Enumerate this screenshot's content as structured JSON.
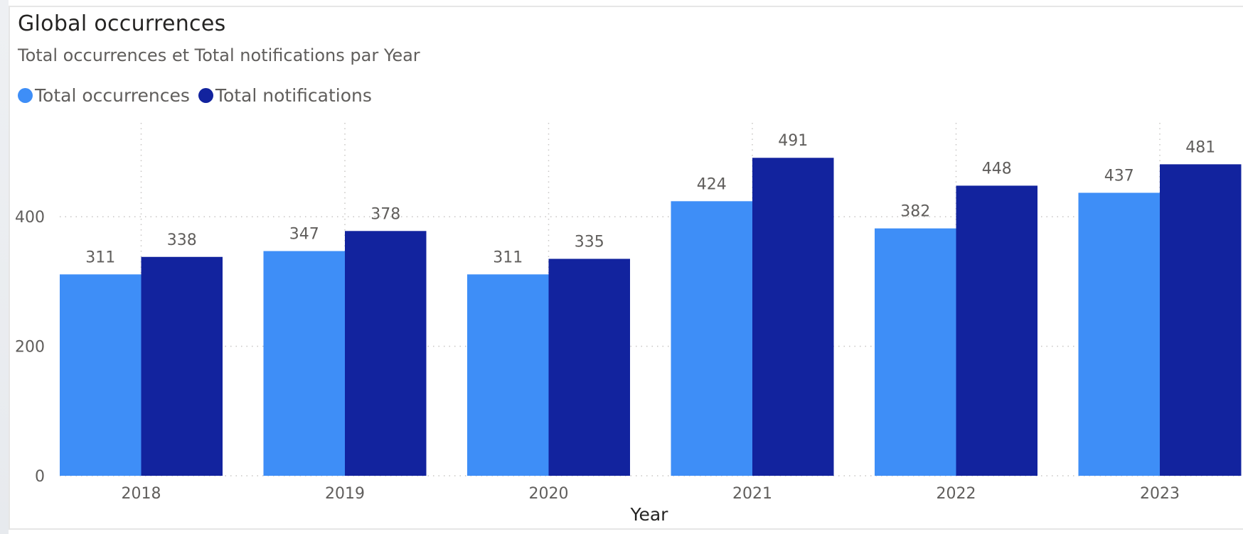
{
  "chart_data": {
    "type": "bar",
    "title": "Global occurrences",
    "subtitle": "Total occurrences et Total notifications par Year",
    "xlabel": "Year",
    "ylabel": "",
    "categories": [
      "2018",
      "2019",
      "2020",
      "2021",
      "2022",
      "2023"
    ],
    "series": [
      {
        "name": "Total occurrences",
        "color": "#3e8ef7",
        "values": [
          311,
          347,
          311,
          424,
          382,
          437
        ]
      },
      {
        "name": "Total notifications",
        "color": "#12239e",
        "values": [
          338,
          378,
          335,
          491,
          448,
          481
        ]
      }
    ],
    "ylim": [
      0,
      545
    ],
    "yticks": [
      0,
      200,
      400
    ],
    "grid": true,
    "legend_position": "top-left",
    "data_labels": true
  }
}
